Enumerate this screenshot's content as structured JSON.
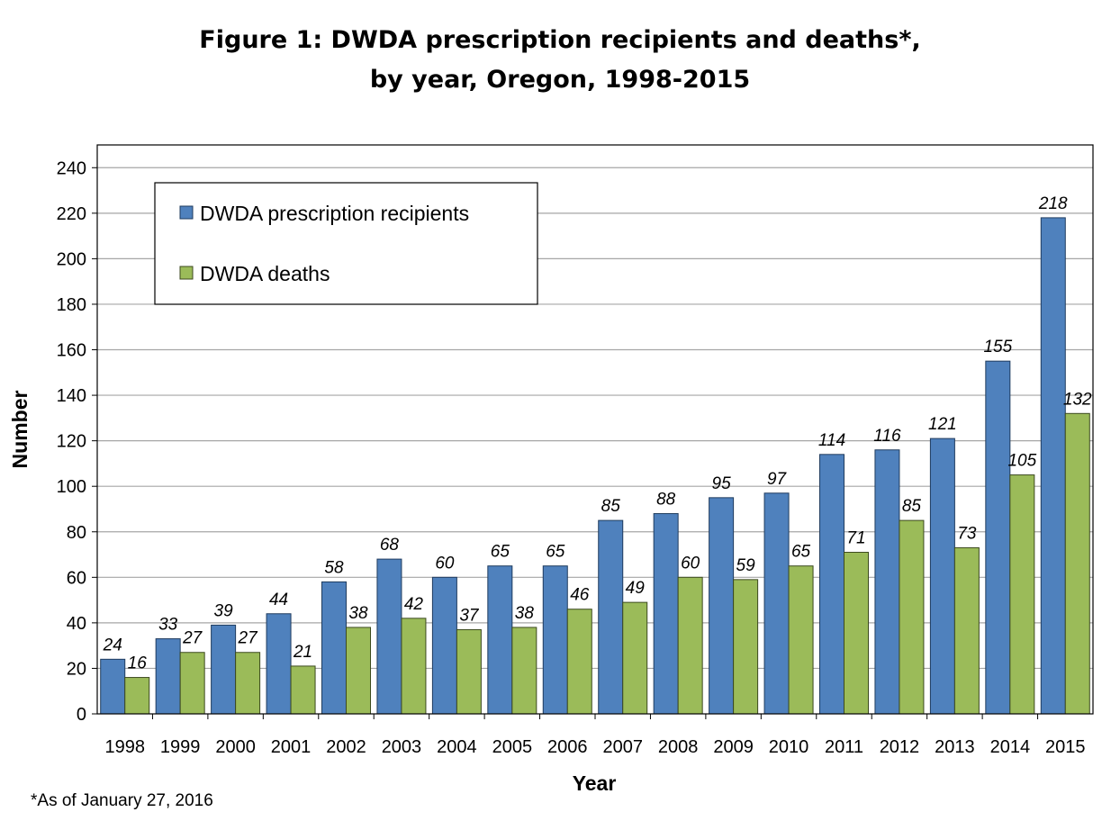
{
  "chart_data": {
    "type": "bar",
    "title": "Figure 1: DWDA prescription recipients and deaths*,",
    "subtitle": "by year, Oregon, 1998-2015",
    "xlabel": "Year",
    "ylabel": "Number",
    "ylim": [
      0,
      250
    ],
    "yticks": [
      0,
      20,
      40,
      60,
      80,
      100,
      120,
      140,
      160,
      180,
      200,
      220,
      240
    ],
    "grid": true,
    "legend_placement": "top-left",
    "categories": [
      "1998",
      "1999",
      "2000",
      "2001",
      "2002",
      "2003",
      "2004",
      "2005",
      "2006",
      "2007",
      "2008",
      "2009",
      "2010",
      "2011",
      "2012",
      "2013",
      "2014",
      "2015"
    ],
    "series": [
      {
        "name": "DWDA prescription recipients",
        "color": "#4F81BD",
        "values": [
          24,
          33,
          39,
          44,
          58,
          68,
          60,
          65,
          65,
          85,
          88,
          95,
          97,
          114,
          116,
          121,
          155,
          218
        ]
      },
      {
        "name": "DWDA deaths",
        "color": "#9BBB59",
        "values": [
          16,
          27,
          27,
          21,
          38,
          42,
          37,
          38,
          46,
          49,
          60,
          59,
          65,
          71,
          85,
          73,
          105,
          132
        ]
      }
    ],
    "footnote": "*As of January 27, 2016"
  }
}
